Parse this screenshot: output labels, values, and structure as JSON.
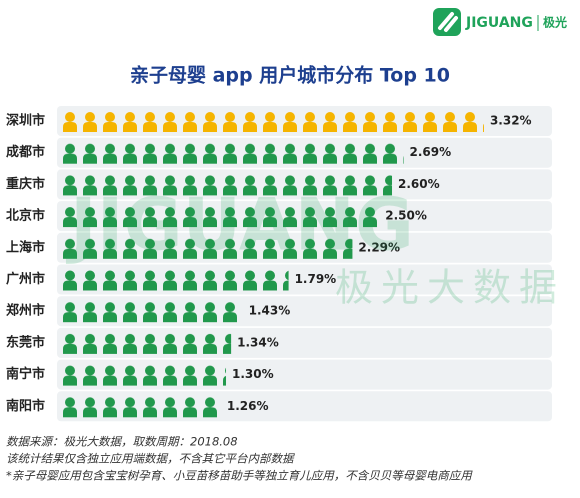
{
  "logo": {
    "name": "JIGUANG",
    "cn": "极光"
  },
  "watermark": {
    "en": "JIGUANG",
    "cn": "极光大数据"
  },
  "chart_data": {
    "type": "pictogram-bar",
    "title": "亲子母婴 app 用户城市分布 Top 10",
    "categories": [
      "深圳市",
      "成都市",
      "重庆市",
      "北京市",
      "上海市",
      "广州市",
      "郑州市",
      "东莞市",
      "南宁市",
      "南阳市"
    ],
    "values": [
      3.32,
      2.69,
      2.6,
      2.5,
      2.29,
      1.79,
      1.43,
      1.34,
      1.3,
      1.26
    ],
    "value_labels": [
      "3.32%",
      "2.69%",
      "2.60%",
      "2.50%",
      "2.29%",
      "1.79%",
      "1.43%",
      "1.34%",
      "1.30%",
      "1.26%"
    ],
    "colors": [
      "#f5b400",
      "#21984c",
      "#21984c",
      "#21984c",
      "#21984c",
      "#21984c",
      "#21984c",
      "#21984c",
      "#21984c",
      "#21984c"
    ]
  },
  "notes": [
    "数据来源：极光大数据，取数周期：2018.08",
    "该统计结果仅含独立应用端数据，不含其它平台内部数据",
    "*亲子母婴应用包含宝宝树孕育、小豆苗移苗助手等独立育儿应用，不含贝贝等母婴电商应用"
  ]
}
